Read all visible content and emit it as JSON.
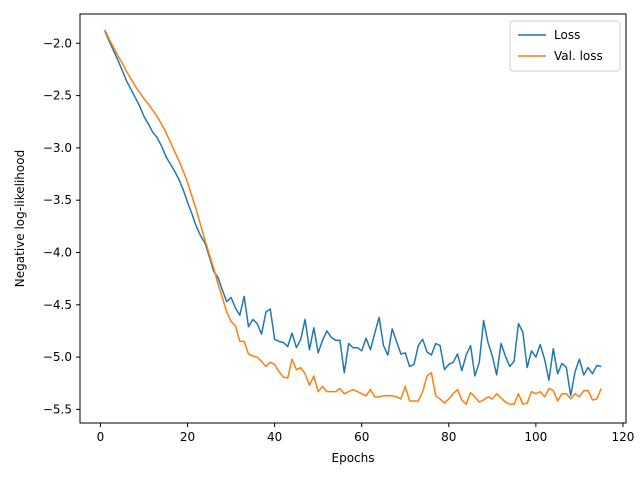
{
  "chart_data": {
    "type": "line",
    "title": "",
    "xlabel": "Epochs",
    "ylabel": "Negative log-likelihood",
    "xlim": [
      -4.7,
      120.7
    ],
    "ylim": [
      -5.63,
      -1.72
    ],
    "xticks": [
      0,
      20,
      40,
      60,
      80,
      100,
      120
    ],
    "yticks": [
      -2.0,
      -2.5,
      -3.0,
      -3.5,
      -4.0,
      -4.5,
      -5.0,
      -5.5
    ],
    "ytick_labels": [
      "−2.0",
      "−2.5",
      "−3.0",
      "−3.5",
      "−4.0",
      "−4.5",
      "−5.0",
      "−5.5"
    ],
    "grid": false,
    "legend_position": "top-right",
    "x": [
      1,
      2,
      3,
      4,
      5,
      6,
      7,
      8,
      9,
      10,
      11,
      12,
      13,
      14,
      15,
      16,
      17,
      18,
      19,
      20,
      21,
      22,
      23,
      24,
      25,
      26,
      27,
      28,
      29,
      30,
      31,
      32,
      33,
      34,
      35,
      36,
      37,
      38,
      39,
      40,
      41,
      42,
      43,
      44,
      45,
      46,
      47,
      48,
      49,
      50,
      51,
      52,
      53,
      54,
      55,
      56,
      57,
      58,
      59,
      60,
      61,
      62,
      63,
      64,
      65,
      66,
      67,
      68,
      69,
      70,
      71,
      72,
      73,
      74,
      75,
      76,
      77,
      78,
      79,
      80,
      81,
      82,
      83,
      84,
      85,
      86,
      87,
      88,
      89,
      90,
      91,
      92,
      93,
      94,
      95,
      96,
      97,
      98,
      99,
      100,
      101,
      102,
      103,
      104,
      105,
      106,
      107,
      108,
      109,
      110,
      111,
      112,
      113,
      114,
      115
    ],
    "series": [
      {
        "name": "Loss",
        "color": "#1f77b4",
        "values": [
          -1.88,
          -1.98,
          -2.07,
          -2.16,
          -2.26,
          -2.36,
          -2.44,
          -2.52,
          -2.6,
          -2.7,
          -2.77,
          -2.85,
          -2.9,
          -2.98,
          -3.08,
          -3.15,
          -3.22,
          -3.3,
          -3.4,
          -3.52,
          -3.63,
          -3.75,
          -3.84,
          -3.91,
          -4.04,
          -4.18,
          -4.24,
          -4.36,
          -4.47,
          -4.43,
          -4.53,
          -4.6,
          -4.42,
          -4.71,
          -4.64,
          -4.68,
          -4.78,
          -4.57,
          -4.54,
          -4.83,
          -4.85,
          -4.86,
          -4.9,
          -4.77,
          -4.91,
          -4.83,
          -4.64,
          -4.93,
          -4.72,
          -4.96,
          -4.84,
          -4.75,
          -4.81,
          -4.84,
          -4.84,
          -5.15,
          -4.87,
          -4.91,
          -4.91,
          -4.94,
          -4.82,
          -4.93,
          -4.77,
          -4.62,
          -4.89,
          -4.98,
          -4.73,
          -4.85,
          -4.97,
          -4.96,
          -5.09,
          -5.07,
          -4.89,
          -4.83,
          -4.95,
          -4.98,
          -4.87,
          -4.89,
          -5.12,
          -5.07,
          -5.05,
          -4.97,
          -5.13,
          -4.98,
          -4.89,
          -5.18,
          -5.05,
          -4.65,
          -4.86,
          -4.99,
          -5.17,
          -4.87,
          -4.99,
          -5.09,
          -5.04,
          -4.68,
          -4.76,
          -5.1,
          -4.94,
          -5.0,
          -4.88,
          -5.02,
          -5.22,
          -4.92,
          -5.16,
          -5.06,
          -5.1,
          -5.37,
          -5.14,
          -5.02,
          -5.17,
          -5.1,
          -5.16,
          -5.08,
          -5.09
        ]
      },
      {
        "name": "Val. loss",
        "color": "#ff7f0e",
        "values": [
          -1.87,
          -1.96,
          -2.04,
          -2.12,
          -2.19,
          -2.27,
          -2.34,
          -2.41,
          -2.47,
          -2.53,
          -2.58,
          -2.64,
          -2.7,
          -2.77,
          -2.85,
          -2.94,
          -3.03,
          -3.12,
          -3.22,
          -3.33,
          -3.46,
          -3.59,
          -3.74,
          -3.88,
          -4.02,
          -4.15,
          -4.3,
          -4.43,
          -4.57,
          -4.66,
          -4.7,
          -4.85,
          -4.85,
          -4.97,
          -4.99,
          -5.0,
          -5.04,
          -5.09,
          -5.05,
          -5.07,
          -5.14,
          -5.19,
          -5.2,
          -5.02,
          -5.12,
          -5.1,
          -5.16,
          -5.27,
          -5.18,
          -5.33,
          -5.28,
          -5.33,
          -5.33,
          -5.33,
          -5.3,
          -5.35,
          -5.33,
          -5.31,
          -5.33,
          -5.35,
          -5.37,
          -5.31,
          -5.38,
          -5.38,
          -5.37,
          -5.37,
          -5.37,
          -5.38,
          -5.4,
          -5.28,
          -5.42,
          -5.42,
          -5.42,
          -5.33,
          -5.18,
          -5.15,
          -5.37,
          -5.4,
          -5.44,
          -5.4,
          -5.35,
          -5.31,
          -5.41,
          -5.45,
          -5.34,
          -5.38,
          -5.43,
          -5.41,
          -5.38,
          -5.4,
          -5.35,
          -5.39,
          -5.43,
          -5.45,
          -5.45,
          -5.35,
          -5.45,
          -5.44,
          -5.33,
          -5.35,
          -5.33,
          -5.38,
          -5.3,
          -5.32,
          -5.42,
          -5.35,
          -5.35,
          -5.4,
          -5.35,
          -5.38,
          -5.32,
          -5.32,
          -5.41,
          -5.4,
          -5.3
        ]
      }
    ]
  }
}
